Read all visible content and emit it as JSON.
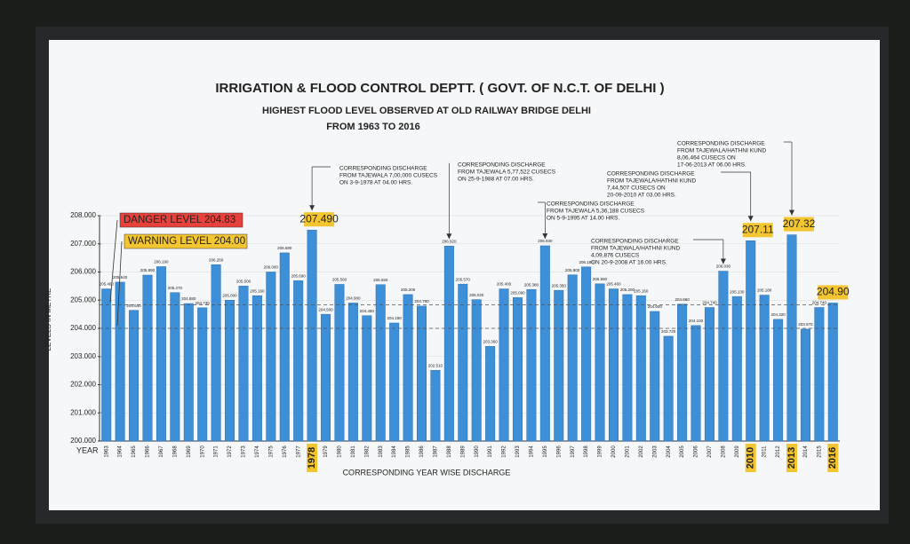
{
  "chart_data": {
    "type": "bar",
    "title": "IRRIGATION & FLOOD CONTROL DEPTT. ( GOVT. OF N.C.T. OF DELHI )",
    "subtitle": "HIGHEST FLOOD LEVEL OBSERVED AT OLD RAILWAY BRIDGE DELHI",
    "period": "FROM 1963 TO 2016",
    "y_label": "LEVELS IN METRE",
    "x_label": "YEAR",
    "footer": "CORRESPONDING YEAR WISE DISCHARGE",
    "categories": [
      "1963",
      "1964",
      "1965",
      "1966",
      "1967",
      "1968",
      "1969",
      "1970",
      "1971",
      "1972",
      "1973",
      "1974",
      "1975",
      "1976",
      "1977",
      "1978",
      "1979",
      "1980",
      "1981",
      "1982",
      "1983",
      "1984",
      "1985",
      "1986",
      "1987",
      "1988",
      "1989",
      "1990",
      "1991",
      "1992",
      "1993",
      "1994",
      "1995",
      "1996",
      "1997",
      "1998",
      "1999",
      "2000",
      "2001",
      "2002",
      "2003",
      "2004",
      "2005",
      "2006",
      "2007",
      "2008",
      "2009",
      "2010",
      "2011",
      "2012",
      "2013",
      "2014",
      "2015",
      "2016"
    ],
    "values": [
      205.4,
      205.64,
      204.64,
      205.89,
      206.19,
      205.27,
      204.88,
      204.73,
      206.26,
      205.0,
      205.5,
      205.16,
      206.0,
      206.68,
      205.69,
      207.49,
      204.5,
      205.56,
      204.9,
      204.45,
      205.55,
      204.19,
      205.2,
      204.79,
      202.51,
      206.92,
      205.57,
      205.02,
      203.36,
      205.4,
      205.09,
      205.38,
      206.93,
      205.35,
      205.9,
      206.18,
      205.58,
      205.4,
      205.2,
      205.16,
      204.6,
      203.72,
      204.86,
      204.1,
      204.74,
      206.03,
      205.13,
      207.11,
      205.18,
      204.32,
      207.32,
      203.97,
      204.74,
      204.9
    ],
    "value_labels": [
      "205.400",
      "205.640",
      "204.640",
      "205.890",
      "206.190",
      "205.270",
      "204.880",
      "204.730",
      "206.260",
      "205.000",
      "205.500",
      "205.160",
      "206.000",
      "206.680",
      "205.690",
      "207.490",
      "204.500",
      "205.560",
      "204.900",
      "204.450",
      "205.550",
      "204.190",
      "205.200",
      "204.790",
      "202.510",
      "206.920",
      "205.570",
      "205.020",
      "203.360",
      "205.400",
      "205.090",
      "205.380",
      "206.930",
      "205.350",
      "205.900",
      "206.180",
      "205.580",
      "205.400",
      "205.200",
      "205.160",
      "204.600",
      "203.720",
      "204.860",
      "204.100",
      "204.740",
      "206.030",
      "205.130",
      "207.11",
      "205.180",
      "204.320",
      "207.32",
      "203.970",
      "204.740",
      "204.90"
    ],
    "color": "#3d8fd8",
    "ylim": [
      200,
      208
    ],
    "yticks": [
      {
        "value": 200,
        "label": "200.000"
      },
      {
        "value": 201,
        "label": "201.000"
      },
      {
        "value": 202,
        "label": "202.000"
      },
      {
        "value": 203,
        "label": "203.000"
      },
      {
        "value": 204,
        "label": "204.000"
      },
      {
        "value": 205,
        "label": "205.000"
      },
      {
        "value": 206,
        "label": "206.000"
      },
      {
        "value": 207,
        "label": "207.000"
      },
      {
        "value": 208,
        "label": "208.000"
      }
    ],
    "grid": true,
    "danger_level": {
      "label": "DANGER LEVEL 204.83",
      "value": 204.83,
      "color": "#e8413c"
    },
    "warning_level": {
      "label": "WARNING LEVEL 204.00",
      "value": 204.0,
      "color": "#f2c531"
    },
    "annotations": [
      {
        "lines": [
          "CORRESPONDING DISCHARGE",
          "FROM TAJEWALA 7,00,000 CUSECS",
          "ON 3-9-1978 AT 04.00 HRS."
        ]
      },
      {
        "lines": [
          "CORRESPONDING DISCHARGE",
          "FROM TAJEWALA 5,77,522 CUSECS",
          "ON 25-9-1988 AT 07.00 HRS."
        ]
      },
      {
        "lines": [
          "CORRESPONDING DISCHARGE",
          "FROM TAJEWALA 5,36,188 CUSECS",
          "ON 5-9-1995 AT 14.00 HRS."
        ]
      },
      {
        "lines": [
          "CORRESPONDING DISCHARGE",
          "FROM TAJEWALA/HATHNI KUND",
          "4,09,876 CUSECS",
          "ON 20-9-2008 AT 16.00 HRS."
        ]
      },
      {
        "lines": [
          "CORRESPONDING DISCHARGE",
          "FROM TAJEWALA/HATHNI KUND",
          "7,44,507 CUSECS ON",
          "20-09-2010 AT 03.00 HRS."
        ]
      },
      {
        "lines": [
          "CORRESPONDING DISCHARGE",
          "FROM TAJEWALA/HATHNI KUND",
          "8,06,464 CUSECS ON",
          "17-06-2013 AT 06.00 HRS."
        ]
      }
    ]
  }
}
